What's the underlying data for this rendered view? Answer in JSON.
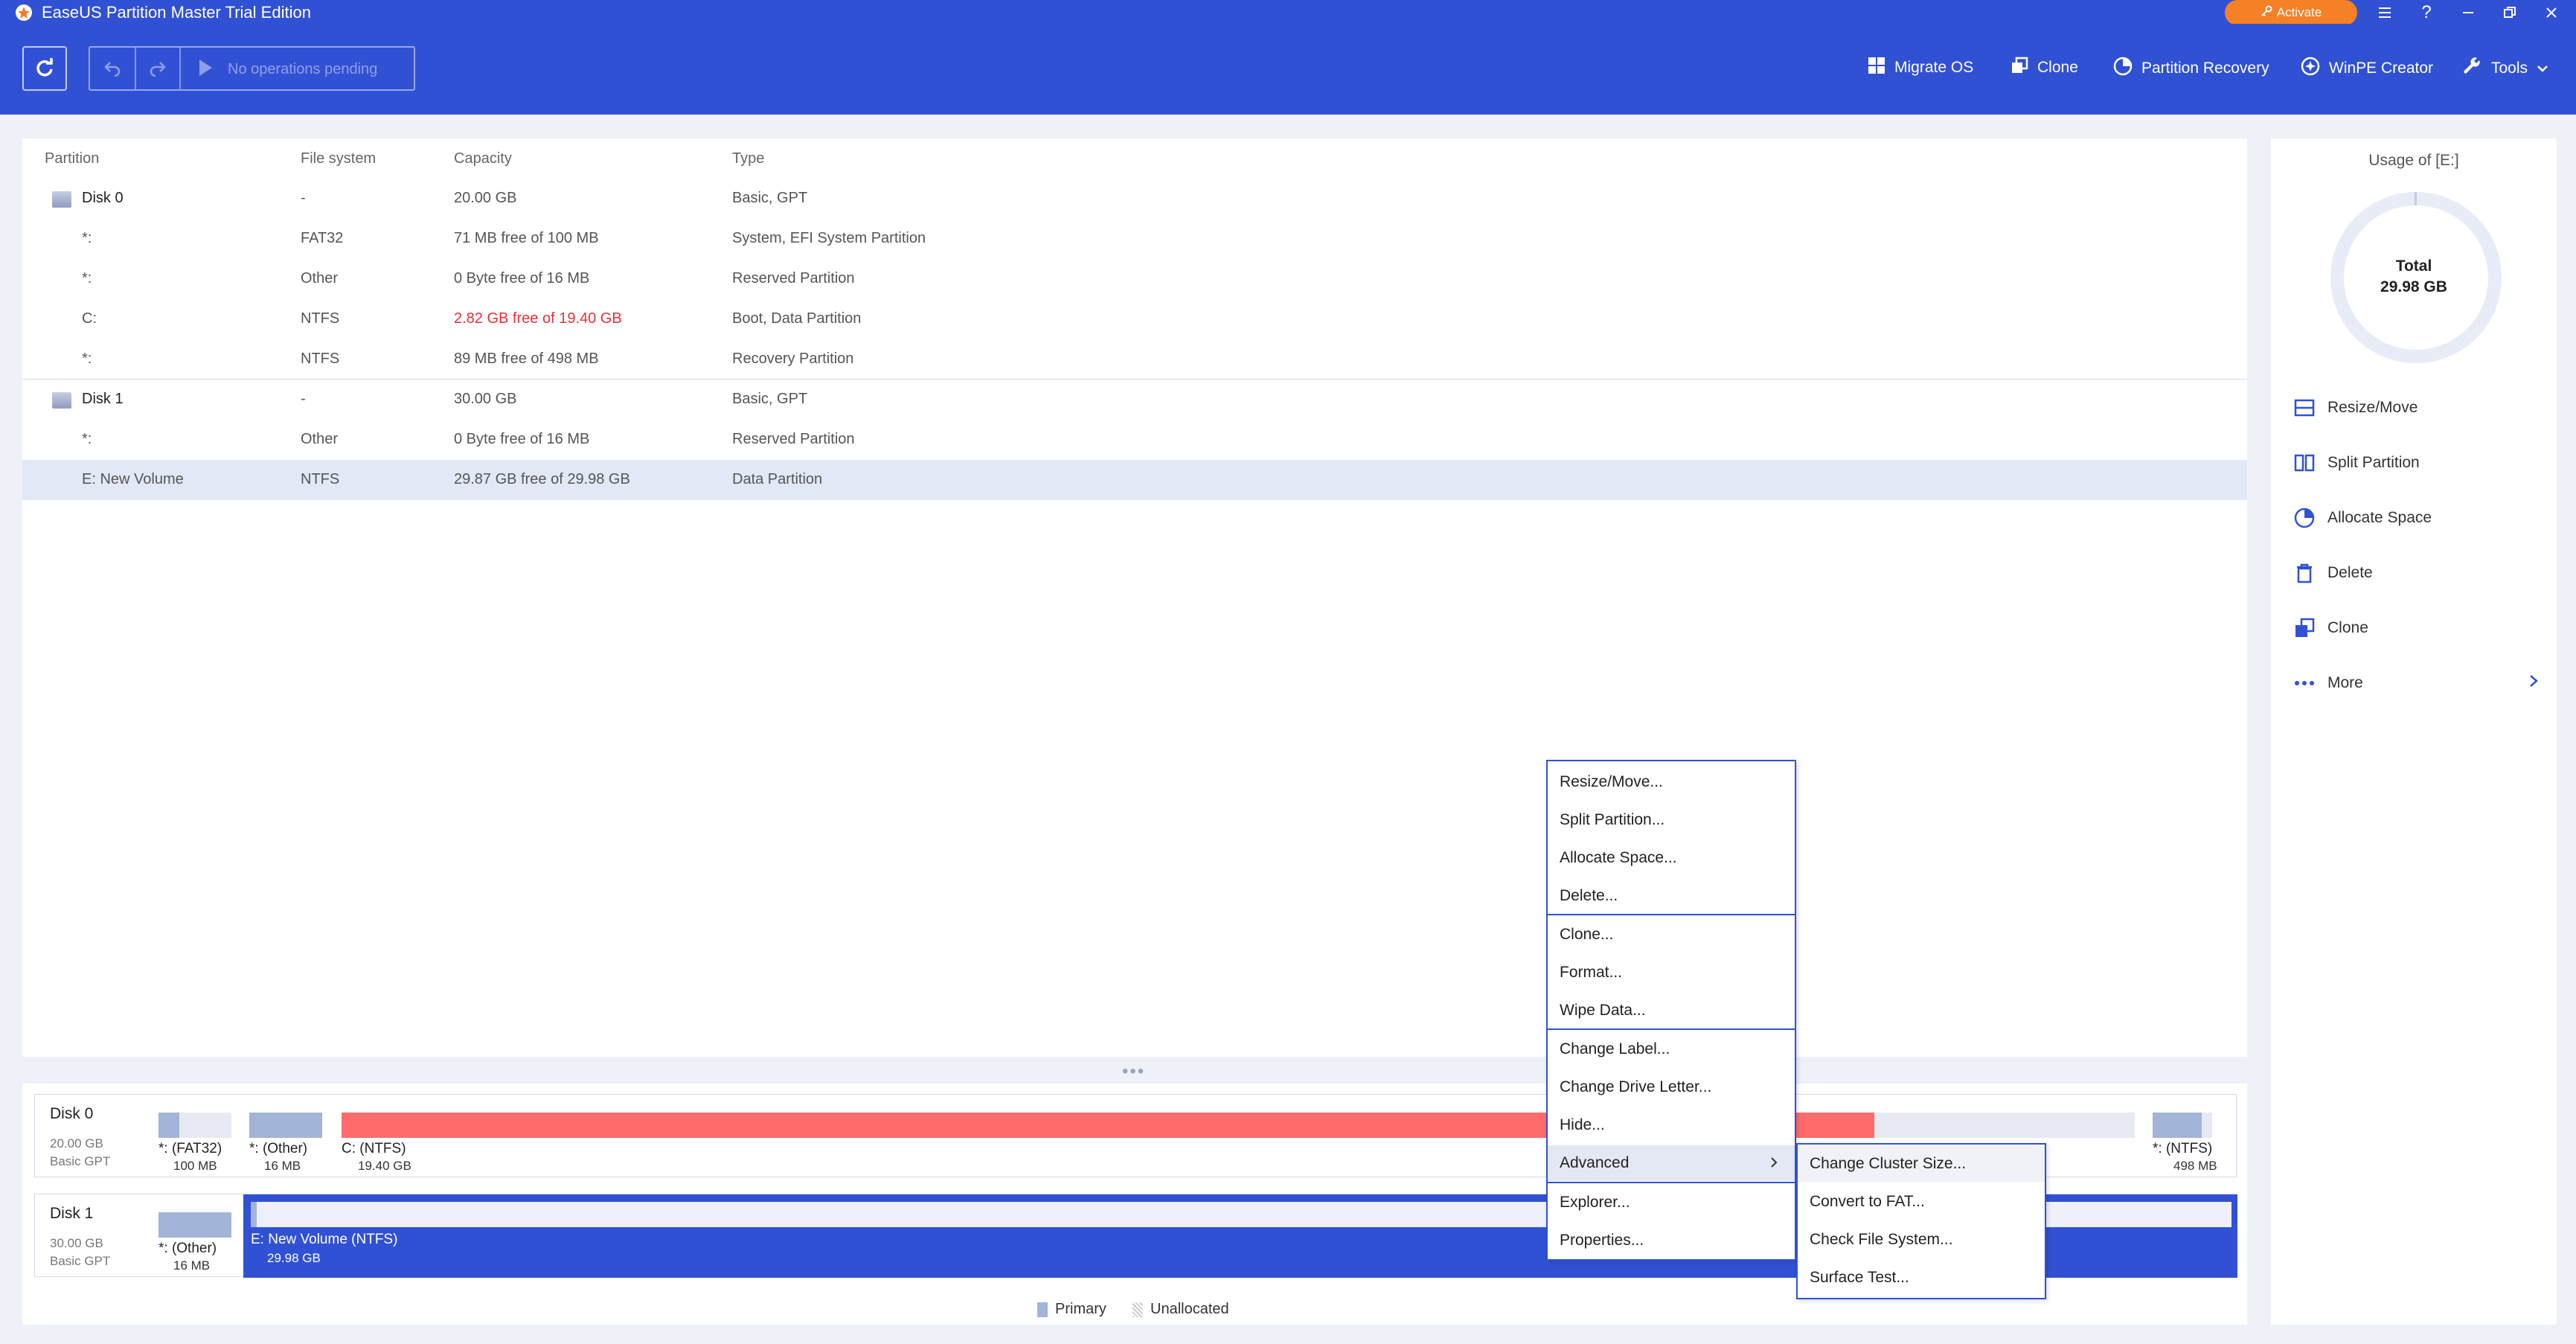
{
  "window": {
    "title": "EaseUS Partition Master Trial Edition",
    "activate_label": "Activate"
  },
  "toolbar": {
    "ops_pending": "No operations pending",
    "items": [
      {
        "label": "Migrate OS",
        "icon": "windows-icon"
      },
      {
        "label": "Clone",
        "icon": "clone-icon"
      },
      {
        "label": "Partition Recovery",
        "icon": "pie-icon"
      },
      {
        "label": "WinPE Creator",
        "icon": "disc-icon"
      },
      {
        "label": "Tools",
        "icon": "wrench-icon"
      }
    ]
  },
  "table": {
    "headers": [
      "Partition",
      "File system",
      "Capacity",
      "Type"
    ],
    "rows": [
      {
        "kind": "disk",
        "name": "Disk 0",
        "fs": "-",
        "capacity": "20.00 GB",
        "type": "Basic, GPT"
      },
      {
        "kind": "part",
        "name": "*:",
        "fs": "FAT32",
        "capacity": "71 MB free of 100 MB",
        "type": "System, EFI System Partition"
      },
      {
        "kind": "part",
        "name": "*:",
        "fs": "Other",
        "capacity": "0 Byte free of 16 MB",
        "type": "Reserved Partition"
      },
      {
        "kind": "part",
        "name": "C:",
        "fs": "NTFS",
        "capacity": "2.82 GB free of 19.40 GB",
        "type": "Boot, Data Partition",
        "warn": true
      },
      {
        "kind": "part",
        "name": "*:",
        "fs": "NTFS",
        "capacity": "89 MB free of 498 MB",
        "type": "Recovery Partition"
      },
      {
        "kind": "disk",
        "name": "Disk 1",
        "fs": "-",
        "capacity": "30.00 GB",
        "type": "Basic, GPT"
      },
      {
        "kind": "part",
        "name": "*:",
        "fs": "Other",
        "capacity": "0 Byte free of 16 MB",
        "type": "Reserved Partition"
      },
      {
        "kind": "part",
        "name": "E: New Volume",
        "fs": "NTFS",
        "capacity": "29.87 GB free of 29.98 GB",
        "type": "Data Partition",
        "selected": true
      }
    ]
  },
  "disk_map": {
    "disk0": {
      "title": "Disk 0",
      "size": "20.00 GB",
      "kind": "Basic GPT",
      "parts": [
        {
          "label": "*: (FAT32)",
          "size": "100 MB",
          "used_fraction": 0.29
        },
        {
          "label": "*: (Other)",
          "size": "16 MB",
          "used_fraction": 1.0
        },
        {
          "label": "C: (NTFS)",
          "size": "19.40 GB",
          "used_fraction": 0.855
        },
        {
          "label": "*: (NTFS)",
          "size": "498 MB",
          "used_fraction": 0.82
        }
      ]
    },
    "disk1": {
      "title": "Disk 1",
      "size": "30.00 GB",
      "kind": "Basic GPT",
      "parts": [
        {
          "label": "*: (Other)",
          "size": "16 MB",
          "used_fraction": 1.0
        },
        {
          "label": "E: New Volume (NTFS)",
          "size": "29.98 GB",
          "used_fraction": 0.004
        }
      ]
    }
  },
  "legend": {
    "primary": "Primary",
    "unallocated": "Unallocated"
  },
  "usage": {
    "title": "Usage of [E:]",
    "total_label": "Total",
    "total_value": "29.98 GB",
    "actions": [
      "Resize/Move",
      "Split Partition",
      "Allocate Space",
      "Delete",
      "Clone",
      "More"
    ]
  },
  "context_menu": {
    "items": [
      "Resize/Move...",
      "Split Partition...",
      "Allocate Space...",
      "Delete...",
      "Clone...",
      "Format...",
      "Wipe Data...",
      "Change Label...",
      "Change Drive Letter...",
      "Hide...",
      "Advanced",
      "Explorer...",
      "Properties..."
    ],
    "submenu": [
      "Change Cluster Size...",
      "Convert to FAT...",
      "Check File System...",
      "Surface Test..."
    ]
  },
  "colors": {
    "brand": "#3151d4",
    "activate": "#f58025",
    "warn": "#e3313b",
    "primary_swatch": "#a2b4d8",
    "c_drive_bar": "#ff6b6b"
  }
}
